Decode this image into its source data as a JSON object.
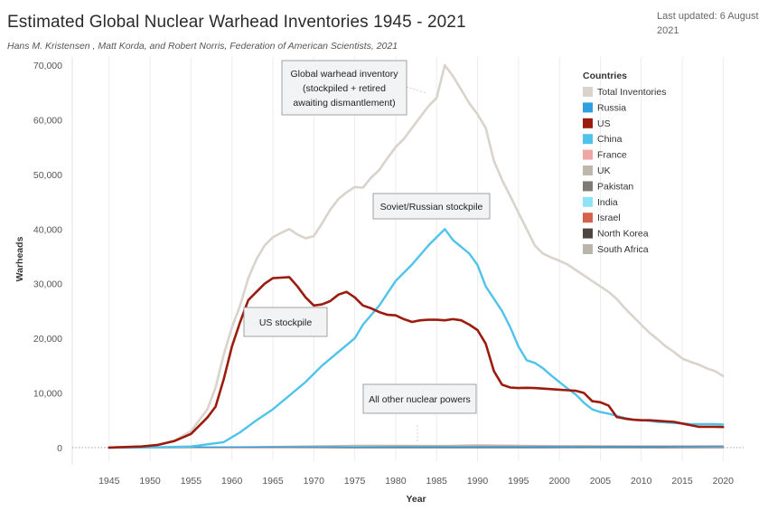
{
  "header": {
    "title": "Estimated Global Nuclear Warhead Inventories 1945 - 2021",
    "subtitle": "Hans M. Kristensen , Matt Korda, and Robert Norris, Federation of American Scientists, 2021",
    "updated_line1": "Last updated: 6 August",
    "updated_line2": "2021"
  },
  "chart_data": {
    "type": "line",
    "title": "Estimated Global Nuclear Warhead Inventories 1945 - 2021",
    "xlabel": "Year",
    "ylabel": "Warheads",
    "xlim": [
      1940.5,
      2022.5
    ],
    "ylim": [
      -2500,
      71500
    ],
    "x_ticks": [
      1945,
      1950,
      1955,
      1960,
      1965,
      1970,
      1975,
      1980,
      1985,
      1990,
      1995,
      2000,
      2005,
      2010,
      2015,
      2020
    ],
    "x_tick_labels": [
      "1945",
      "1950",
      "1955",
      "1960",
      "1965",
      "1970",
      "1975",
      "1980",
      "1985",
      "1990",
      "1995",
      "2000",
      "2005",
      "2010",
      "2015",
      "2020"
    ],
    "y_ticks": [
      0,
      10000,
      20000,
      30000,
      40000,
      50000,
      60000,
      70000
    ],
    "y_tick_labels": [
      "0",
      "10,000",
      "20,000",
      "30,000",
      "40,000",
      "50,000",
      "60,000",
      "70,000"
    ],
    "grid": "vertical",
    "legend": {
      "title": "Countries",
      "position": "right",
      "entries": [
        {
          "name": "Total Inventories",
          "color": "#d9d3cc"
        },
        {
          "name": "Russia",
          "color": "#2f9fe0"
        },
        {
          "name": "US",
          "color": "#9b1c0f"
        },
        {
          "name": "China",
          "color": "#4fc3ea"
        },
        {
          "name": "France",
          "color": "#f0a7a4"
        },
        {
          "name": "UK",
          "color": "#bdb7ad"
        },
        {
          "name": "Pakistan",
          "color": "#7f7a74"
        },
        {
          "name": "India",
          "color": "#8fe3f7"
        },
        {
          "name": "Israel",
          "color": "#d4624f"
        },
        {
          "name": "North Korea",
          "color": "#4d4640"
        },
        {
          "name": "South Africa",
          "color": "#b9b5ac"
        }
      ]
    },
    "series": [
      {
        "name": "Total Inventories",
        "color": "#d9d3cc",
        "width": 2.6,
        "x": [
          1945,
          1947,
          1949,
          1951,
          1953,
          1955,
          1957,
          1958,
          1959,
          1960,
          1961,
          1962,
          1963,
          1964,
          1965,
          1966,
          1967,
          1968,
          1969,
          1970,
          1971,
          1972,
          1973,
          1974,
          1975,
          1976,
          1977,
          1978,
          1979,
          1980,
          1981,
          1982,
          1983,
          1984,
          1985,
          1986,
          1987,
          1988,
          1989,
          1990,
          1991,
          1992,
          1993,
          1994,
          1995,
          1996,
          1997,
          1998,
          1999,
          2000,
          2001,
          2002,
          2003,
          2004,
          2005,
          2006,
          2007,
          2008,
          2009,
          2010,
          2011,
          2012,
          2013,
          2014,
          2015,
          2016,
          2017,
          2018,
          2019,
          2020
        ],
        "y": [
          0,
          100,
          200,
          500,
          1300,
          3000,
          7000,
          11000,
          17000,
          22000,
          26000,
          31000,
          34500,
          37000,
          38500,
          39300,
          40000,
          39000,
          38300,
          38700,
          41000,
          43500,
          45500,
          46700,
          47700,
          47600,
          49400,
          50800,
          53000,
          55000,
          56500,
          58500,
          60500,
          62500,
          64000,
          70000,
          68000,
          65500,
          63000,
          61000,
          58500,
          52500,
          49000,
          46000,
          43000,
          40000,
          37000,
          35500,
          34800,
          34200,
          33500,
          32500,
          31500,
          30500,
          29500,
          28500,
          27200,
          25500,
          24000,
          22500,
          21000,
          19800,
          18500,
          17500,
          16300,
          15700,
          15200,
          14500,
          14000,
          13100
        ]
      },
      {
        "name": "Russia",
        "color": "#2f9fe0",
        "width": 1.4,
        "x": [
          1945,
          1955,
          2000,
          2005,
          2010,
          2015,
          2020
        ],
        "y": [
          0,
          100,
          150,
          180,
          200,
          220,
          240
        ]
      },
      {
        "name": "China",
        "color": "#4fc3ea",
        "width": 2.4,
        "x": [
          1945,
          1949,
          1952,
          1955,
          1957,
          1959,
          1961,
          1963,
          1965,
          1967,
          1969,
          1971,
          1973,
          1975,
          1976,
          1978,
          1980,
          1982,
          1984,
          1986,
          1987,
          1989,
          1990,
          1991,
          1993,
          1994,
          1995,
          1996,
          1997,
          1998,
          1999,
          2000,
          2001,
          2002,
          2003,
          2004,
          2005,
          2006,
          2007,
          2008,
          2009,
          2010,
          2011,
          2012,
          2013,
          2014,
          2015,
          2016,
          2017,
          2018,
          2019,
          2020
        ],
        "y": [
          0,
          0,
          100,
          200,
          600,
          1000,
          2800,
          5000,
          7000,
          9500,
          12000,
          15000,
          17500,
          20000,
          22500,
          26000,
          30500,
          33500,
          37000,
          40000,
          38000,
          35500,
          33400,
          29500,
          25000,
          22000,
          18500,
          16000,
          15500,
          14500,
          13200,
          12000,
          10800,
          9700,
          8200,
          7000,
          6500,
          6200,
          5800,
          5400,
          5100,
          5000,
          4900,
          4700,
          4600,
          4500,
          4400,
          4300,
          4300,
          4300,
          4300,
          4200
        ]
      },
      {
        "name": "US",
        "color": "#9b1c0f",
        "width": 2.6,
        "x": [
          1945,
          1947,
          1949,
          1951,
          1953,
          1955,
          1957,
          1958,
          1959,
          1960,
          1961,
          1962,
          1963,
          1964,
          1965,
          1966,
          1967,
          1968,
          1969,
          1970,
          1971,
          1972,
          1973,
          1974,
          1975,
          1976,
          1977,
          1978,
          1979,
          1980,
          1981,
          1982,
          1983,
          1984,
          1985,
          1986,
          1987,
          1988,
          1989,
          1990,
          1991,
          1992,
          1993,
          1994,
          1995,
          1996,
          1997,
          1998,
          1999,
          2000,
          2001,
          2002,
          2003,
          2004,
          2005,
          2006,
          2007,
          2008,
          2009,
          2010,
          2011,
          2012,
          2013,
          2014,
          2015,
          2016,
          2017,
          2018,
          2019,
          2020
        ],
        "y": [
          0,
          100,
          200,
          500,
          1200,
          2500,
          5500,
          7500,
          12500,
          18500,
          23000,
          27000,
          28500,
          30000,
          31000,
          31100,
          31200,
          29500,
          27500,
          26000,
          26200,
          26800,
          28000,
          28500,
          27500,
          26000,
          25500,
          24800,
          24300,
          24200,
          23500,
          23000,
          23300,
          23400,
          23400,
          23300,
          23500,
          23300,
          22500,
          21500,
          19000,
          14000,
          11500,
          11000,
          10900,
          10950,
          10900,
          10800,
          10700,
          10600,
          10500,
          10400,
          10000,
          8500,
          8300,
          7700,
          5600,
          5300,
          5100,
          5000,
          5000,
          4900,
          4800,
          4700,
          4400,
          4100,
          3800,
          3800,
          3800,
          3750
        ]
      },
      {
        "name": "UK",
        "color": "#bdb7ad",
        "width": 1.4,
        "x": [
          1945,
          1953,
          1960,
          1970,
          1975,
          1980,
          1990,
          2000,
          2010,
          2020
        ],
        "y": [
          0,
          10,
          100,
          300,
          400,
          400,
          350,
          250,
          220,
          200
        ]
      },
      {
        "name": "France",
        "color": "#f0a7a4",
        "width": 1.4,
        "x": [
          1945,
          1964,
          1970,
          1980,
          1990,
          2000,
          2010,
          2020
        ],
        "y": [
          0,
          0,
          40,
          200,
          500,
          350,
          300,
          290
        ]
      },
      {
        "name": "Pakistan",
        "color": "#7f7a74",
        "width": 1.4,
        "x": [
          1945,
          1998,
          2005,
          2010,
          2015,
          2020
        ],
        "y": [
          0,
          0,
          50,
          90,
          120,
          160
        ]
      },
      {
        "name": "India",
        "color": "#8fe3f7",
        "width": 1.4,
        "x": [
          1945,
          1998,
          2005,
          2010,
          2015,
          2020
        ],
        "y": [
          0,
          0,
          50,
          80,
          110,
          150
        ]
      },
      {
        "name": "Israel",
        "color": "#d4624f",
        "width": 1.4,
        "x": [
          1945,
          1967,
          1980,
          2000,
          2020
        ],
        "y": [
          0,
          10,
          40,
          80,
          90
        ]
      },
      {
        "name": "North Korea",
        "color": "#4d4640",
        "width": 1.4,
        "x": [
          1945,
          2006,
          2010,
          2015,
          2020
        ],
        "y": [
          0,
          0,
          5,
          15,
          40
        ]
      },
      {
        "name": "South Africa",
        "color": "#b9b5ac",
        "width": 1.4,
        "x": [
          1945,
          1979,
          1985,
          1990,
          1991,
          2020
        ],
        "y": [
          0,
          0,
          6,
          6,
          0,
          0
        ]
      }
    ],
    "annotations": [
      {
        "id": "total",
        "lines": [
          "Global warhead inventory",
          "(stockpiled + retired",
          "awaiting dismantlement)"
        ],
        "anchor": {
          "x": 1987,
          "y": 65000
        }
      },
      {
        "id": "soviet",
        "lines": [
          "Soviet/Russian stockpile"
        ],
        "anchor": {
          "x": 1986,
          "y": 40500
        }
      },
      {
        "id": "us",
        "lines": [
          "US stockpile"
        ],
        "anchor": {
          "x": 1966,
          "y": 29000
        }
      },
      {
        "id": "others",
        "lines": [
          "All other nuclear powers"
        ],
        "anchor": {
          "x": 1983,
          "y": 600
        }
      }
    ]
  }
}
